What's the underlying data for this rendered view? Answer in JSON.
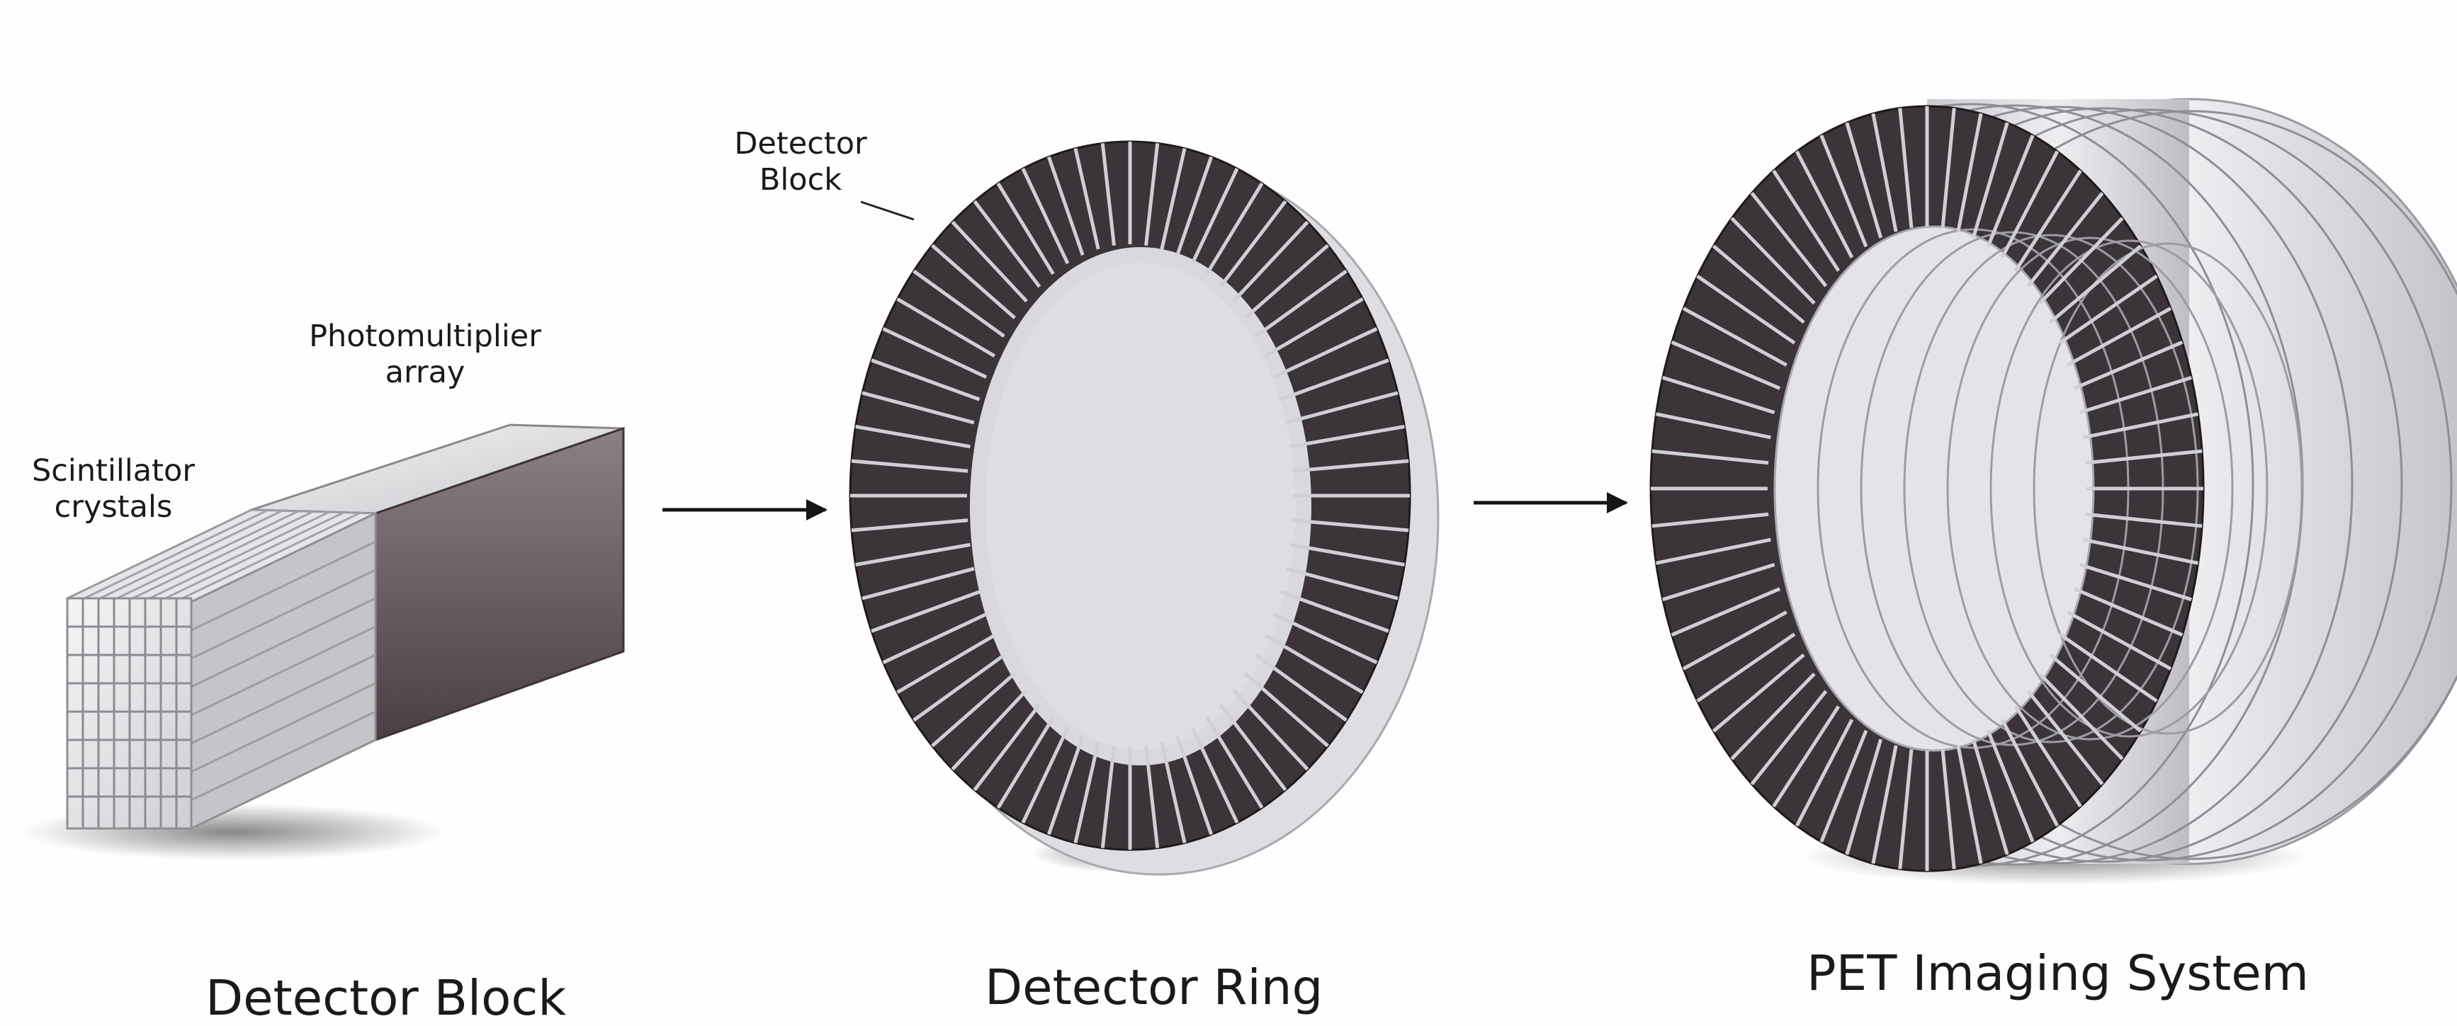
{
  "panels": [
    {
      "caption": "Detector Block",
      "annotations": [
        {
          "text": "Photomultiplier"
        },
        {
          "text": "array"
        },
        {
          "text": "Scintillator"
        },
        {
          "text": "crystals"
        }
      ]
    },
    {
      "caption": "Detector Ring",
      "annotations": [
        {
          "text": "Detector"
        },
        {
          "text": "Block"
        }
      ]
    },
    {
      "caption": "PET Imaging System",
      "annotations": []
    }
  ],
  "colors": {
    "block_face_dark": "#3c3639",
    "block_face_light": "#d8d8dc",
    "ring_dark": "#3a3337",
    "shell_light": "#e2e2e6",
    "arrow": "#151515"
  }
}
